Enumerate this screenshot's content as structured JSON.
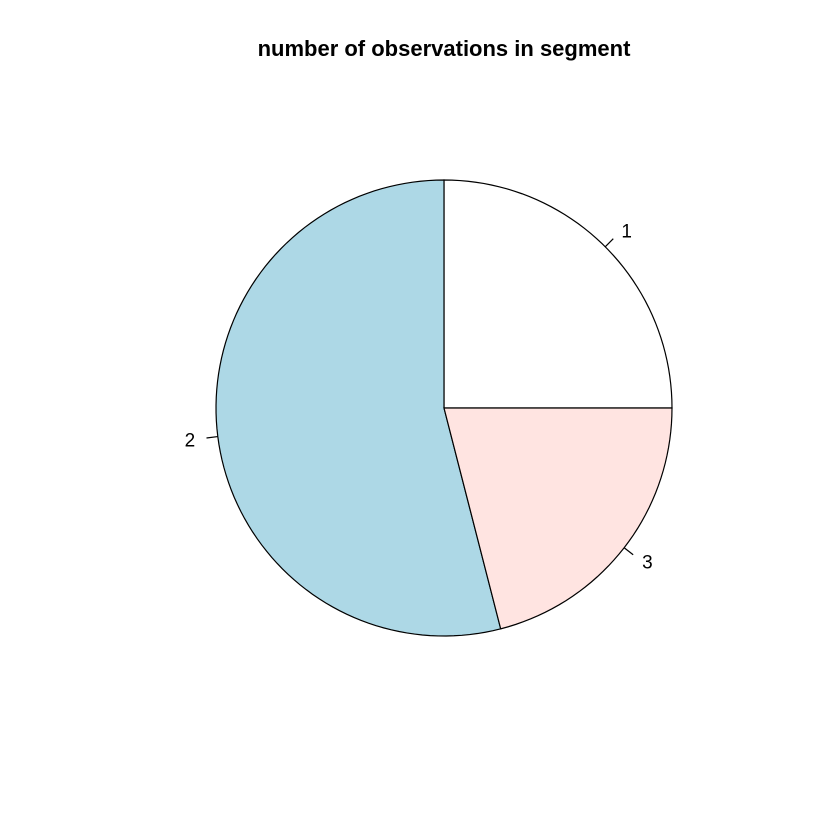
{
  "chart_data": {
    "type": "pie",
    "title": "number of observations in segment",
    "labels": [
      "1",
      "2",
      "3"
    ],
    "values": [
      25,
      54,
      21
    ],
    "colors": [
      "#FFFFFF",
      "#ADD8E6",
      "#FFE4E1"
    ],
    "start_angle_deg": 0,
    "direction": "counterclockwise"
  }
}
